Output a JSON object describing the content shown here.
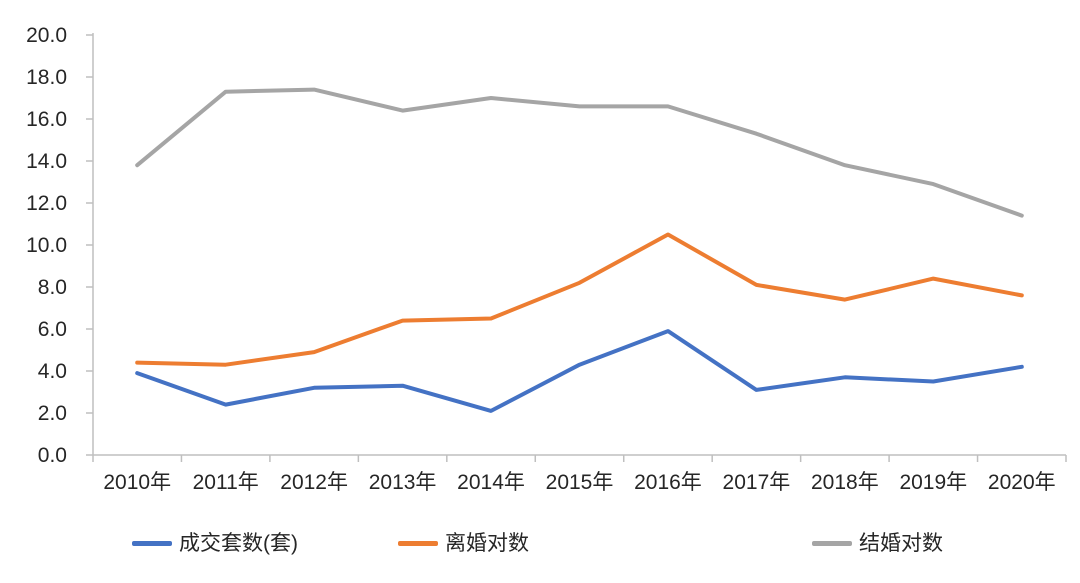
{
  "chart_data": {
    "type": "line",
    "title": "",
    "xlabel": "",
    "ylabel": "",
    "categories": [
      "2010年",
      "2011年",
      "2012年",
      "2013年",
      "2014年",
      "2015年",
      "2016年",
      "2017年",
      "2018年",
      "2019年",
      "2020年"
    ],
    "series": [
      {
        "name": "成交套数(套)",
        "color": "#4472C4",
        "values": [
          3.9,
          2.4,
          3.2,
          3.3,
          2.1,
          4.3,
          5.9,
          3.1,
          3.7,
          3.5,
          4.2
        ]
      },
      {
        "name": "离婚对数",
        "color": "#ED7D31",
        "values": [
          4.4,
          4.3,
          4.9,
          6.4,
          6.5,
          8.2,
          10.5,
          8.1,
          7.4,
          8.4,
          7.6
        ]
      },
      {
        "name": "结婚对数",
        "color": "#A5A5A5",
        "values": [
          13.8,
          17.3,
          17.4,
          16.4,
          17.0,
          16.6,
          16.6,
          15.3,
          13.8,
          12.9,
          11.4
        ]
      }
    ],
    "ylim": [
      0,
      20
    ],
    "ytick_step": 2,
    "ytick_decimals": 1,
    "grid": false,
    "legend_position": "bottom",
    "axis_color": "#BFBFBF",
    "label_color": "#262626"
  }
}
